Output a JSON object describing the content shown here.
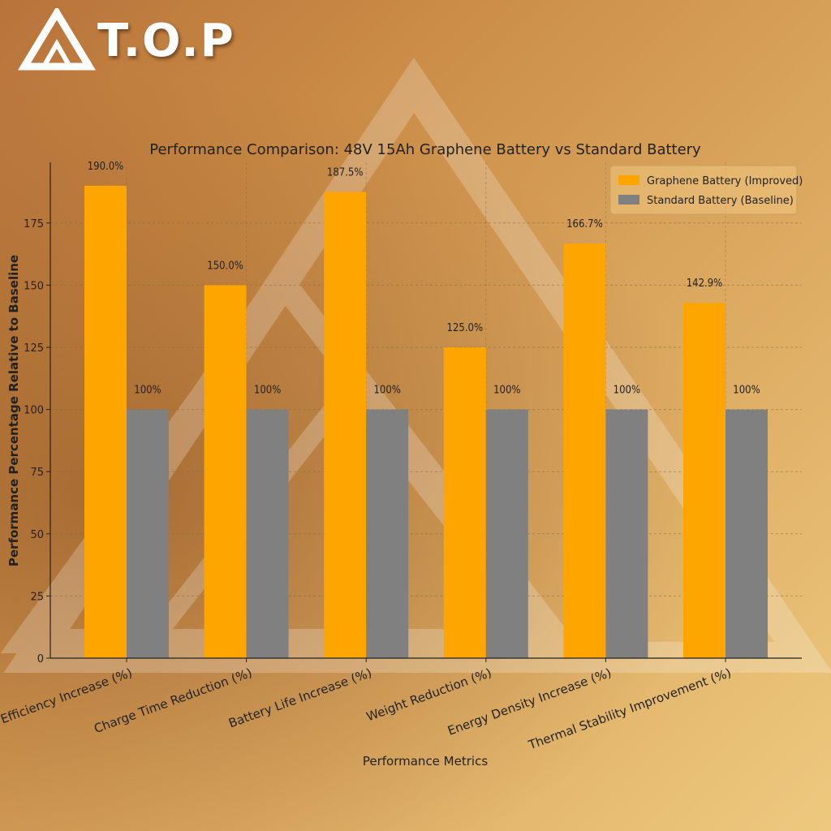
{
  "logo": {
    "text": "T.O.P"
  },
  "chart_data": {
    "type": "bar",
    "title": "Performance Comparison: 48V 15Ah Graphene Battery vs Standard Battery",
    "xlabel": "Performance Metrics",
    "ylabel": "Performance Percentage Relative to Baseline",
    "ylim": [
      0,
      200
    ],
    "yticks": [
      0,
      25,
      50,
      75,
      100,
      125,
      150,
      175
    ],
    "grid": true,
    "legend_position": "top-right",
    "categories": [
      "Efficiency Increase (%)",
      "Charge Time Reduction (%)",
      "Battery Life Increase (%)",
      "Weight Reduction (%)",
      "Energy Density Increase (%)",
      "Thermal Stability Improvement (%)"
    ],
    "series": [
      {
        "name": "Graphene Battery (Improved)",
        "color": "#FFA500",
        "values": [
          190.0,
          150.0,
          187.5,
          125.0,
          166.7,
          142.9
        ],
        "labels": [
          "190.0%",
          "150.0%",
          "187.5%",
          "125.0%",
          "166.7%",
          "142.9%"
        ]
      },
      {
        "name": "Standard Battery (Baseline)",
        "color": "#808080",
        "values": [
          100,
          100,
          100,
          100,
          100,
          100
        ],
        "labels": [
          "100%",
          "100%",
          "100%",
          "100%",
          "100%",
          "100%"
        ]
      }
    ]
  }
}
